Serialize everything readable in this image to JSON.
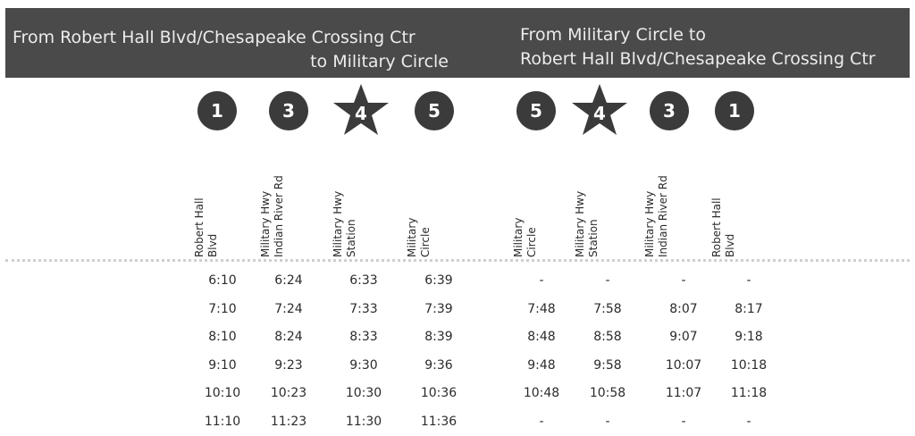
{
  "header": {
    "left_line1": "From Robert Hall Blvd/Chesapeake Crossing Ctr",
    "left_line2": "to Military Circle",
    "right_line1": "From Military Circle to",
    "right_line2": "Robert Hall Blvd/Chesapeake Crossing Ctr"
  },
  "columns": [
    {
      "marker": "1",
      "shape": "circle",
      "line1": "Robert Hall",
      "line2": "Blvd"
    },
    {
      "marker": "3",
      "shape": "circle",
      "line1": "Military Hwy",
      "line2": "Indian River Rd"
    },
    {
      "marker": "4",
      "shape": "star",
      "line1": "Military Hwy",
      "line2": "Station"
    },
    {
      "marker": "5",
      "shape": "circle",
      "line1": "Military",
      "line2": "Circle"
    },
    {
      "marker": "5",
      "shape": "circle",
      "line1": "Military",
      "line2": "Circle"
    },
    {
      "marker": "4",
      "shape": "star",
      "line1": "Military Hwy",
      "line2": "Station"
    },
    {
      "marker": "3",
      "shape": "circle",
      "line1": "Military Hwy",
      "line2": "Indian River Rd"
    },
    {
      "marker": "1",
      "shape": "circle",
      "line1": "Robert Hall",
      "line2": "Blvd"
    }
  ],
  "rows": [
    [
      "6:10",
      "6:24",
      "6:33",
      "6:39",
      "-",
      "-",
      "-",
      "-"
    ],
    [
      "7:10",
      "7:24",
      "7:33",
      "7:39",
      "7:48",
      "7:58",
      "8:07",
      "8:17"
    ],
    [
      "8:10",
      "8:24",
      "8:33",
      "8:39",
      "8:48",
      "8:58",
      "9:07",
      "9:18"
    ],
    [
      "9:10",
      "9:23",
      "9:30",
      "9:36",
      "9:48",
      "9:58",
      "10:07",
      "10:18"
    ],
    [
      "10:10",
      "10:23",
      "10:30",
      "10:36",
      "10:48",
      "10:58",
      "11:07",
      "11:18"
    ],
    [
      "11:10",
      "11:23",
      "11:30",
      "11:36",
      "-",
      "-",
      "-",
      "-"
    ]
  ],
  "colors": {
    "header_bg": "#4a4a4a",
    "marker": "#3b3b3b",
    "divider": "#cfcfcf"
  }
}
